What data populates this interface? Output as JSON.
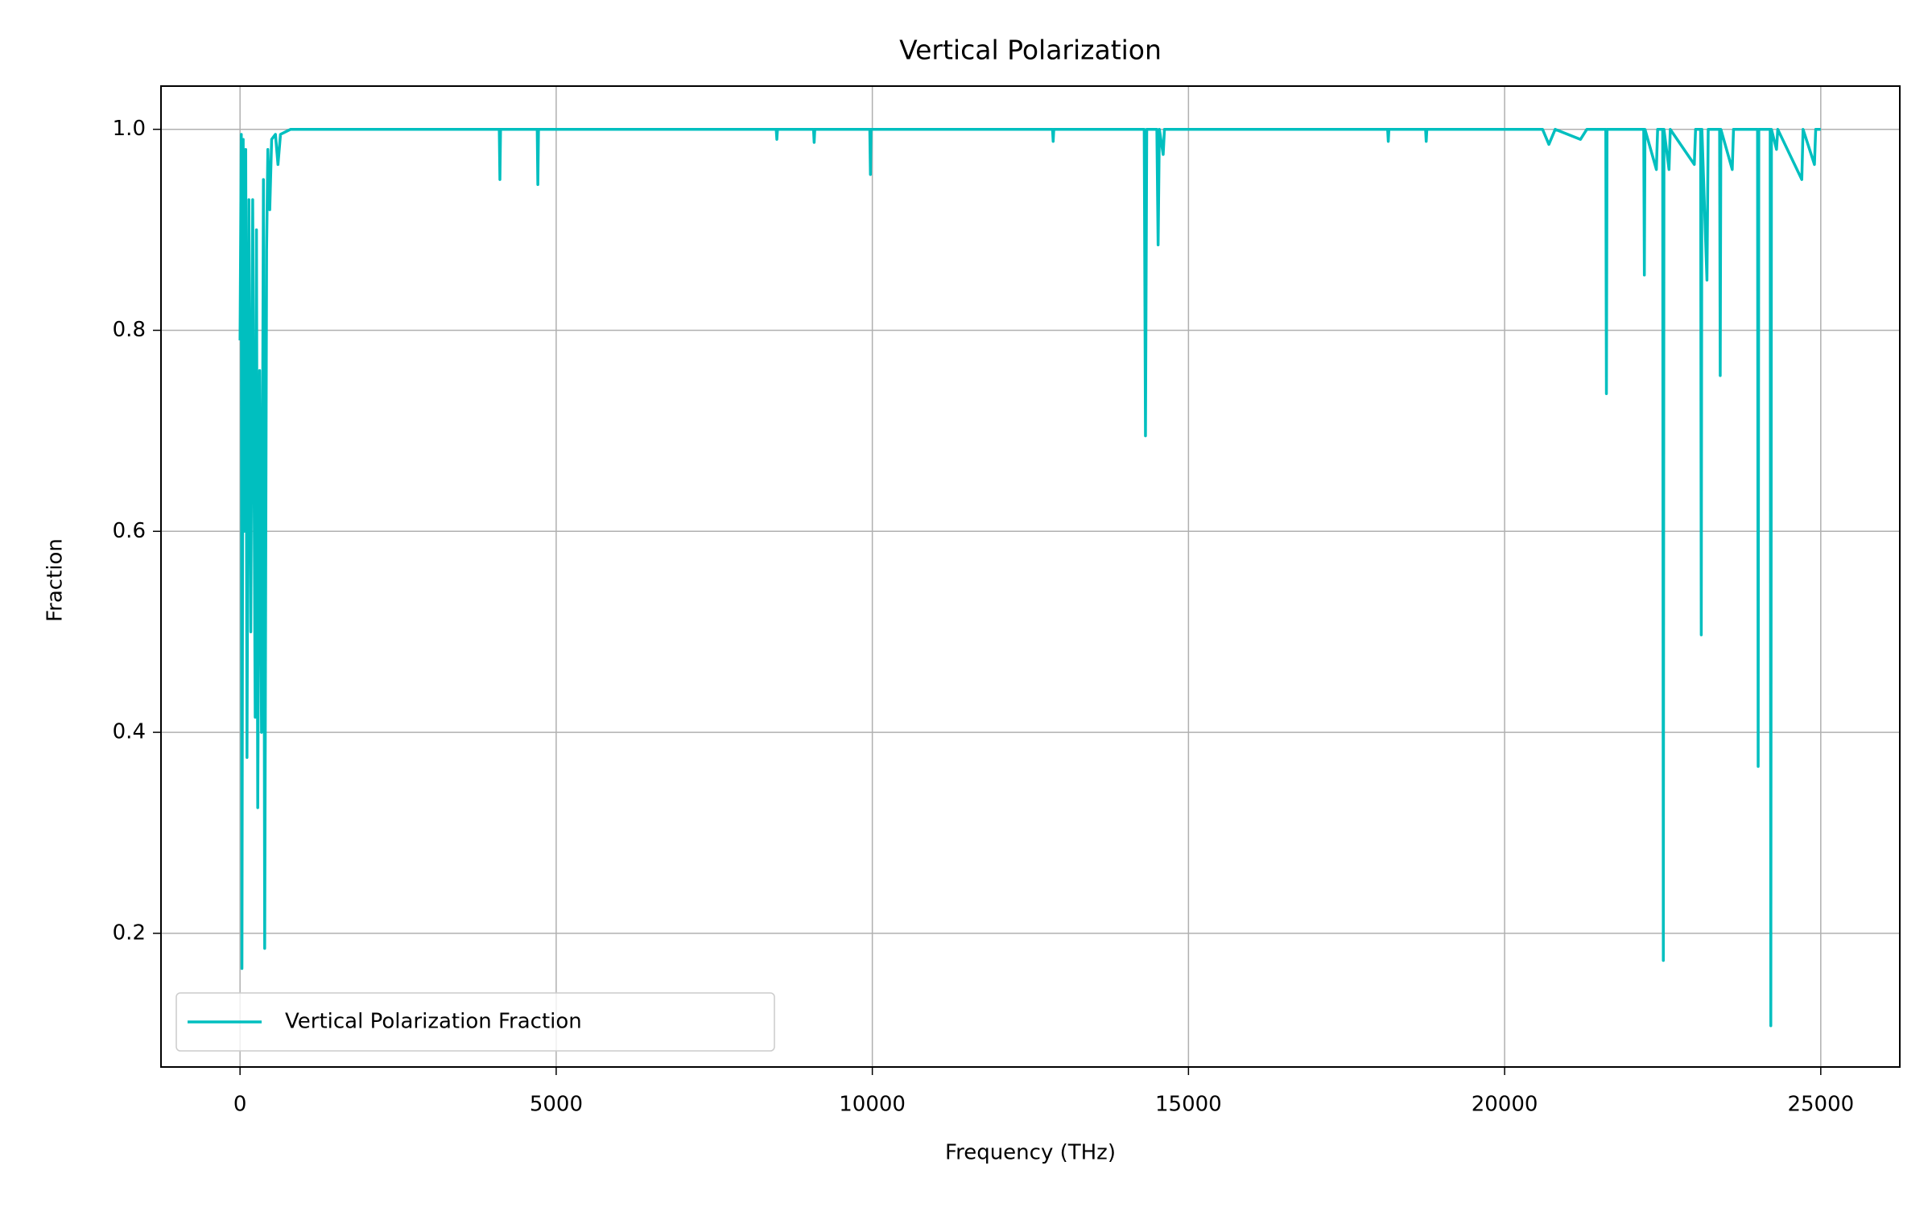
{
  "chart_data": {
    "type": "line",
    "title": "Vertical Polarization",
    "x_label": "Frequency (THz)",
    "y_label": "Fraction",
    "x": [
      0,
      20,
      30,
      50,
      70,
      90,
      110,
      140,
      170,
      200,
      240,
      260,
      280,
      310,
      340,
      370,
      390,
      420,
      440,
      470,
      500,
      560,
      600,
      640,
      800,
      4100,
      4110,
      4120,
      4700,
      4710,
      4720,
      8480,
      8490,
      8500,
      9070,
      9080,
      9090,
      9960,
      9970,
      9980,
      12850,
      12860,
      12870,
      14300,
      14320,
      14340,
      14500,
      14520,
      14540,
      14600,
      14620,
      18150,
      18160,
      18170,
      18750,
      18760,
      18770,
      20600,
      20700,
      20800,
      21200,
      21300,
      21600,
      21610,
      21620,
      22200,
      22210,
      22220,
      22400,
      22420,
      22500,
      22510,
      22520,
      22600,
      22620,
      23000,
      23020,
      23100,
      23110,
      23120,
      23200,
      23220,
      23400,
      23410,
      23420,
      23600,
      23620,
      24000,
      24010,
      24020,
      24200,
      24210,
      24220,
      24300,
      24320,
      24700,
      24720,
      24900,
      24920,
      25000
    ],
    "series": [
      {
        "name": "Vertical Polarization Fraction",
        "color": "#00bfbf",
        "values": [
          0.79,
          0.995,
          0.165,
          0.99,
          0.6,
          0.98,
          0.375,
          0.93,
          0.5,
          0.93,
          0.415,
          0.9,
          0.325,
          0.76,
          0.4,
          0.95,
          0.185,
          0.88,
          0.98,
          0.92,
          0.99,
          0.995,
          0.965,
          0.995,
          1.0,
          1.0,
          0.95,
          1.0,
          1.0,
          0.945,
          1.0,
          1.0,
          0.99,
          1.0,
          1.0,
          0.987,
          1.0,
          1.0,
          0.955,
          1.0,
          1.0,
          0.988,
          1.0,
          1.0,
          0.695,
          1.0,
          1.0,
          0.885,
          1.0,
          0.975,
          1.0,
          1.0,
          0.988,
          1.0,
          1.0,
          0.988,
          1.0,
          1.0,
          0.985,
          1.0,
          0.99,
          1.0,
          1.0,
          0.737,
          1.0,
          1.0,
          0.855,
          1.0,
          0.96,
          1.0,
          1.0,
          0.173,
          1.0,
          0.96,
          1.0,
          0.965,
          1.0,
          1.0,
          0.497,
          1.0,
          0.85,
          1.0,
          1.0,
          0.755,
          1.0,
          0.96,
          1.0,
          1.0,
          0.366,
          1.0,
          1.0,
          0.108,
          1.0,
          0.98,
          1.0,
          0.95,
          1.0,
          0.965,
          1.0,
          1.0
        ]
      }
    ],
    "xlim": [
      -1250,
      26250
    ],
    "ylim": [
      0.067,
      1.043
    ],
    "xticks": [
      0,
      5000,
      10000,
      15000,
      20000,
      25000
    ],
    "yticks": [
      0.2,
      0.4,
      0.6,
      0.8,
      {
        "value": 1,
        "label": "1.0"
      }
    ],
    "grid": true,
    "legend": "lower left"
  }
}
